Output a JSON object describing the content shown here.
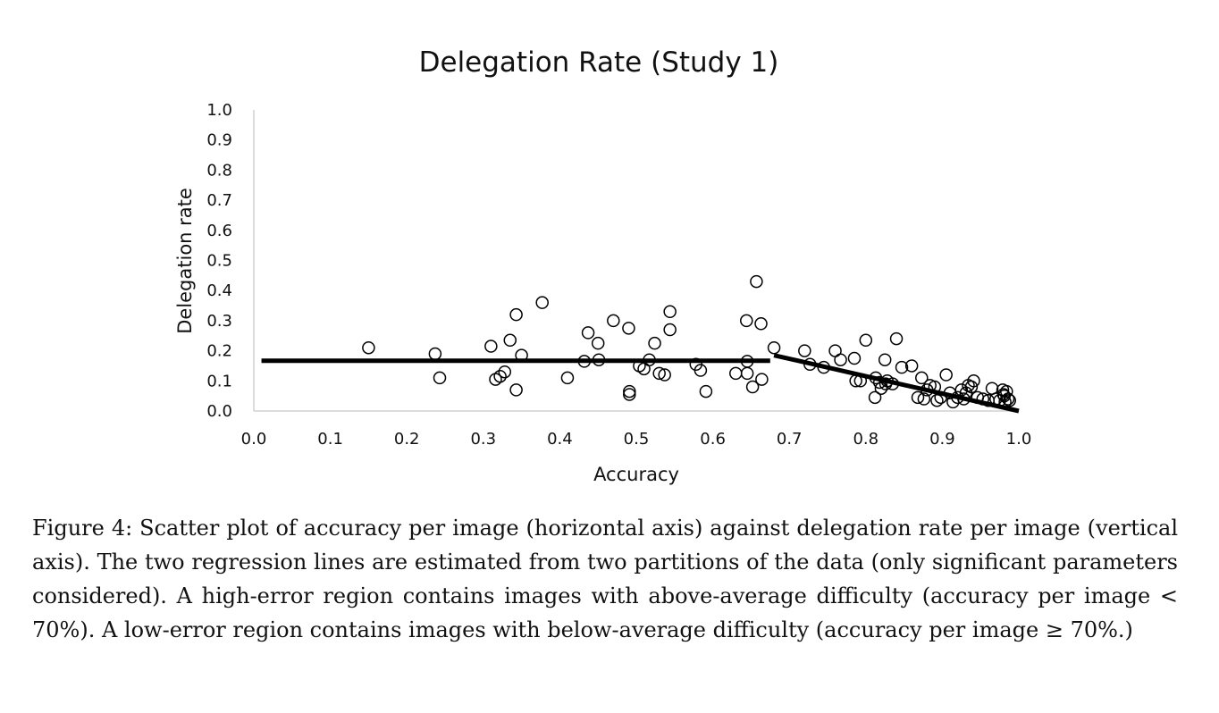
{
  "chart_data": {
    "type": "scatter",
    "title": "Delegation Rate (Study 1)",
    "xlabel": "Accuracy",
    "ylabel": "Delegation rate",
    "xlim": [
      0,
      1
    ],
    "ylim": [
      0,
      1
    ],
    "xticks": [
      "0.0",
      "0.1",
      "0.2",
      "0.3",
      "0.4",
      "0.5",
      "0.6",
      "0.7",
      "0.8",
      "0.9",
      "1.0"
    ],
    "yticks": [
      "0.0",
      "0.1",
      "0.2",
      "0.3",
      "0.4",
      "0.5",
      "0.6",
      "0.7",
      "0.8",
      "0.9",
      "1.0"
    ],
    "points": [
      [
        0.15,
        0.21
      ],
      [
        0.237,
        0.19
      ],
      [
        0.243,
        0.11
      ],
      [
        0.31,
        0.215
      ],
      [
        0.316,
        0.105
      ],
      [
        0.322,
        0.115
      ],
      [
        0.328,
        0.13
      ],
      [
        0.335,
        0.235
      ],
      [
        0.343,
        0.32
      ],
      [
        0.343,
        0.07
      ],
      [
        0.35,
        0.185
      ],
      [
        0.377,
        0.36
      ],
      [
        0.41,
        0.11
      ],
      [
        0.432,
        0.165
      ],
      [
        0.437,
        0.26
      ],
      [
        0.45,
        0.225
      ],
      [
        0.451,
        0.17
      ],
      [
        0.47,
        0.3
      ],
      [
        0.49,
        0.275
      ],
      [
        0.491,
        0.065
      ],
      [
        0.491,
        0.055
      ],
      [
        0.504,
        0.15
      ],
      [
        0.51,
        0.14
      ],
      [
        0.517,
        0.17
      ],
      [
        0.524,
        0.225
      ],
      [
        0.53,
        0.125
      ],
      [
        0.537,
        0.12
      ],
      [
        0.544,
        0.33
      ],
      [
        0.544,
        0.27
      ],
      [
        0.578,
        0.155
      ],
      [
        0.584,
        0.135
      ],
      [
        0.591,
        0.065
      ],
      [
        0.63,
        0.125
      ],
      [
        0.644,
        0.3
      ],
      [
        0.645,
        0.165
      ],
      [
        0.645,
        0.125
      ],
      [
        0.652,
        0.08
      ],
      [
        0.657,
        0.43
      ],
      [
        0.663,
        0.29
      ],
      [
        0.664,
        0.105
      ],
      [
        0.68,
        0.21
      ],
      [
        0.72,
        0.2
      ],
      [
        0.727,
        0.155
      ],
      [
        0.745,
        0.145
      ],
      [
        0.76,
        0.2
      ],
      [
        0.767,
        0.17
      ],
      [
        0.785,
        0.175
      ],
      [
        0.787,
        0.1
      ],
      [
        0.793,
        0.1
      ],
      [
        0.8,
        0.235
      ],
      [
        0.812,
        0.045
      ],
      [
        0.813,
        0.11
      ],
      [
        0.818,
        0.095
      ],
      [
        0.82,
        0.075
      ],
      [
        0.825,
        0.17
      ],
      [
        0.826,
        0.09
      ],
      [
        0.828,
        0.1
      ],
      [
        0.835,
        0.09
      ],
      [
        0.84,
        0.24
      ],
      [
        0.847,
        0.145
      ],
      [
        0.86,
        0.15
      ],
      [
        0.868,
        0.045
      ],
      [
        0.873,
        0.11
      ],
      [
        0.876,
        0.04
      ],
      [
        0.88,
        0.07
      ],
      [
        0.884,
        0.085
      ],
      [
        0.89,
        0.08
      ],
      [
        0.893,
        0.035
      ],
      [
        0.898,
        0.045
      ],
      [
        0.905,
        0.12
      ],
      [
        0.91,
        0.06
      ],
      [
        0.914,
        0.03
      ],
      [
        0.92,
        0.045
      ],
      [
        0.925,
        0.07
      ],
      [
        0.928,
        0.04
      ],
      [
        0.931,
        0.06
      ],
      [
        0.934,
        0.085
      ],
      [
        0.938,
        0.08
      ],
      [
        0.941,
        0.1
      ],
      [
        0.946,
        0.045
      ],
      [
        0.953,
        0.04
      ],
      [
        0.96,
        0.035
      ],
      [
        0.965,
        0.075
      ],
      [
        0.97,
        0.04
      ],
      [
        0.975,
        0.035
      ],
      [
        0.979,
        0.07
      ],
      [
        0.98,
        0.055
      ],
      [
        0.981,
        0.05
      ],
      [
        0.982,
        0.03
      ],
      [
        0.984,
        0.065
      ],
      [
        0.986,
        0.04
      ],
      [
        0.988,
        0.035
      ]
    ],
    "regression_lines": [
      {
        "name": "high-error region",
        "x": [
          0.01,
          0.675
        ],
        "y": [
          0.167,
          0.167
        ]
      },
      {
        "name": "low-error region",
        "x": [
          0.68,
          1.0
        ],
        "y": [
          0.185,
          0.0
        ]
      }
    ]
  },
  "caption": "Figure 4: Scatter plot of accuracy per image (horizontal axis) against delegation rate per image (vertical axis). The two regression lines are estimated from two partitions of the data (only significant parameters considered). A high-error region contains images with above-average difficulty (accuracy per image < 70%). A low-error region contains images with below-average difficulty (accuracy per image ≥ 70%.)"
}
